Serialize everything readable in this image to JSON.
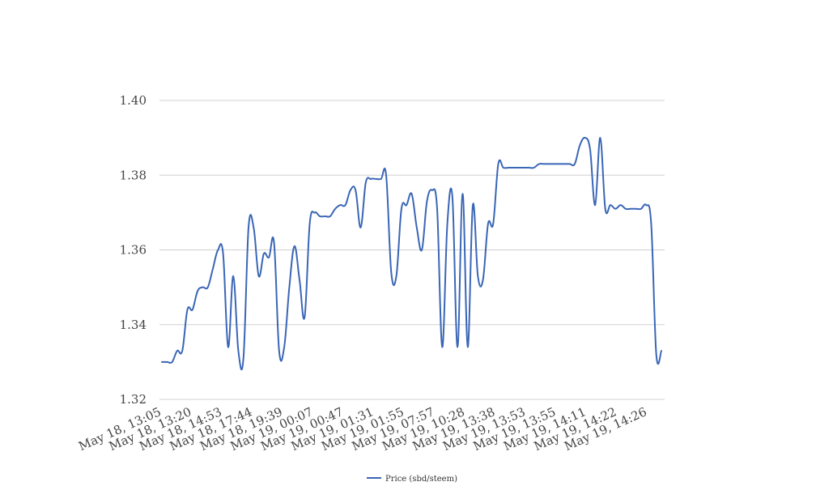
{
  "chart_data": {
    "type": "line",
    "x_tick_labels": [
      "May 18, 13:05",
      "May 18, 13:20",
      "May 18, 14:53",
      "May 18, 17:44",
      "May 18, 19:39",
      "May 19, 00:07",
      "May 19, 00:47",
      "May 19, 01:31",
      "May 19, 01:55",
      "May 19, 07:57",
      "May 19, 10:28",
      "May 19, 13:38",
      "May 19, 13:53",
      "May 19, 13:55",
      "May 19, 14:11",
      "May 19, 14:22",
      "May 19, 14:26"
    ],
    "ylim": [
      1.32,
      1.4
    ],
    "y_ticks": [
      "1.32",
      "1.34",
      "1.36",
      "1.38",
      "1.40"
    ],
    "grid": true,
    "legend_position": "bottom",
    "series": [
      {
        "name": "Price (sbd/steem)",
        "color": "#3a66b6",
        "values": [
          1.33,
          1.33,
          1.33,
          1.333,
          1.333,
          1.344,
          1.344,
          1.349,
          1.35,
          1.35,
          1.355,
          1.36,
          1.359,
          1.334,
          1.353,
          1.333,
          1.331,
          1.366,
          1.366,
          1.353,
          1.359,
          1.358,
          1.362,
          1.333,
          1.334,
          1.35,
          1.361,
          1.352,
          1.342,
          1.367,
          1.37,
          1.369,
          1.369,
          1.369,
          1.371,
          1.372,
          1.372,
          1.376,
          1.376,
          1.366,
          1.378,
          1.379,
          1.379,
          1.379,
          1.38,
          1.354,
          1.353,
          1.371,
          1.372,
          1.375,
          1.366,
          1.36,
          1.373,
          1.376,
          1.371,
          1.334,
          1.367,
          1.374,
          1.334,
          1.375,
          1.334,
          1.372,
          1.353,
          1.352,
          1.367,
          1.367,
          1.383,
          1.382,
          1.382,
          1.382,
          1.382,
          1.382,
          1.382,
          1.382,
          1.383,
          1.383,
          1.383,
          1.383,
          1.383,
          1.383,
          1.383,
          1.383,
          1.388,
          1.39,
          1.387,
          1.372,
          1.39,
          1.371,
          1.372,
          1.371,
          1.372,
          1.371,
          1.371,
          1.371,
          1.371,
          1.372,
          1.367,
          1.332,
          1.333
        ]
      }
    ]
  }
}
